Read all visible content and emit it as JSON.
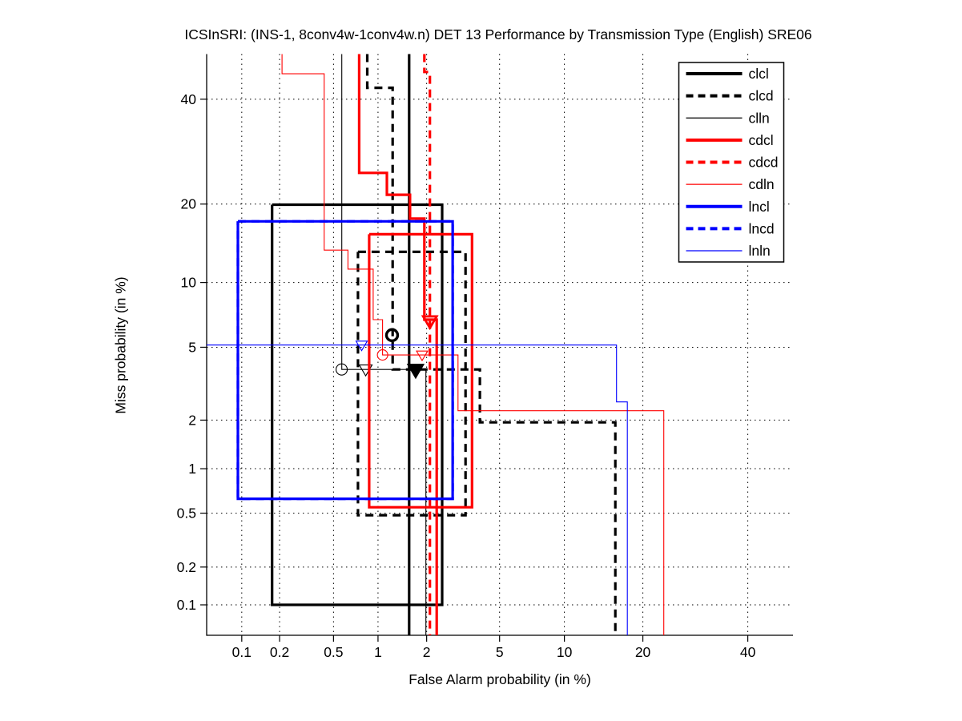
{
  "title": "ICSInSRI: (INS-1, 8conv4w-1conv4w.n) DET 13 Performance by Transmission Type (English) SRE06",
  "axes": {
    "x_label": "False Alarm probability (in %)",
    "y_label": "Miss probability (in %)",
    "x_tick_labels": [
      "0.1",
      "0.2",
      "0.5",
      "1",
      "2",
      "5",
      "10",
      "20",
      "40"
    ],
    "x_tick_values": [
      0.1,
      0.2,
      0.5,
      1,
      2,
      5,
      10,
      20,
      40
    ],
    "y_tick_labels": [
      "40",
      "20",
      "10",
      "5",
      "2",
      "1",
      "0.5",
      "0.2",
      "0.1"
    ],
    "y_tick_values": [
      40,
      20,
      10,
      5,
      2,
      1,
      0.5,
      0.2,
      0.1
    ],
    "x_range_pct": [
      0.05,
      50
    ],
    "y_range_pct": [
      0.055,
      50
    ],
    "scale": "normal-deviate (probit)",
    "grid": "dotted lines at labeled ticks"
  },
  "colors": {
    "black": "#000000",
    "red": "#ff0000",
    "blue": "#0000ff",
    "grid": "#000000",
    "background": "#ffffff",
    "legend_border": "#000000"
  },
  "chart_data": {
    "type": "line",
    "subtype": "DET curves (step functions on probit-scaled axes)",
    "title": "ICSInSRI: (INS-1, 8conv4w-1conv4w.n) DET 13 Performance by Transmission Type (English) SRE06",
    "xlabel": "False Alarm probability (in %)",
    "ylabel": "Miss probability (in %)",
    "xlim_pct": [
      0.05,
      50
    ],
    "ylim_pct": [
      0.055,
      50
    ],
    "legend_position": "top-right inside plot",
    "series": [
      {
        "name": "clcl",
        "color": "#000000",
        "style": "solid",
        "width": 3.2,
        "draw_order": 0,
        "polylines": [
          [
            [
              1.57,
              50
            ],
            [
              1.57,
              0.05
            ]
          ],
          [
            [
              0.175,
              19.9
            ],
            [
              2.46,
              19.9
            ],
            [
              2.46,
              0.1
            ],
            [
              0.175,
              0.1
            ],
            [
              0.175,
              19.9
            ]
          ]
        ],
        "markers": [
          {
            "shape": "triangle-down",
            "filled": true,
            "x": 1.72,
            "y": 3.82,
            "size": 9,
            "sw": 2.5
          }
        ]
      },
      {
        "name": "clcd",
        "color": "#000000",
        "style": "dashed",
        "width": 3.2,
        "draw_order": 1,
        "polylines": [
          [
            [
              0.85,
              50
            ],
            [
              0.85,
              42.5
            ],
            [
              1.24,
              42.5
            ],
            [
              1.24,
              3.84
            ],
            [
              3.96,
              3.84
            ],
            [
              3.96,
              1.94
            ],
            [
              15.96,
              1.94
            ],
            [
              15.96,
              0.05
            ]
          ],
          [
            [
              0.737,
              13.35
            ],
            [
              3.32,
              13.35
            ],
            [
              3.32,
              0.484
            ],
            [
              0.737,
              0.484
            ],
            [
              0.737,
              13.35
            ]
          ]
        ],
        "markers": [
          {
            "shape": "circle",
            "filled": false,
            "x": 1.23,
            "y": 5.74,
            "size": 7,
            "sw": 3.4
          }
        ]
      },
      {
        "name": "clln",
        "color": "#000000",
        "style": "solid",
        "width": 1.1,
        "draw_order": 2,
        "polylines": [
          [
            [
              0.571,
              50
            ],
            [
              0.571,
              3.84
            ],
            [
              1.98,
              3.84
            ],
            [
              1.98,
              0.05
            ]
          ]
        ],
        "markers": [
          {
            "shape": "circle",
            "filled": false,
            "x": 0.57,
            "y": 3.84,
            "size": 7,
            "sw": 1.1
          },
          {
            "shape": "triangle-down",
            "filled": false,
            "x": 0.83,
            "y": 3.84,
            "size": 8,
            "sw": 1.1
          }
        ]
      },
      {
        "name": "cdcl",
        "color": "#ff0000",
        "style": "solid",
        "width": 3.2,
        "draw_order": 3,
        "polylines": [
          [
            [
              0.751,
              50
            ],
            [
              0.751,
              25.25
            ],
            [
              1.14,
              25.25
            ],
            [
              1.14,
              21.5
            ],
            [
              1.59,
              21.5
            ],
            [
              1.59,
              17.8
            ],
            [
              1.94,
              17.8
            ],
            [
              1.94,
              6.81
            ],
            [
              2.29,
              6.81
            ],
            [
              2.29,
              0.05
            ]
          ],
          [
            [
              0.875,
              15.6
            ],
            [
              3.6,
              15.6
            ],
            [
              3.6,
              0.55
            ],
            [
              0.875,
              0.55
            ],
            [
              0.875,
              15.6
            ]
          ]
        ],
        "markers": []
      },
      {
        "name": "cdcd",
        "color": "#ff0000",
        "style": "dashed",
        "width": 3.2,
        "draw_order": 4,
        "polylines": [
          [
            [
              1.94,
              50
            ],
            [
              1.94,
              46
            ],
            [
              2.09,
              46
            ],
            [
              2.09,
              0.05
            ]
          ]
        ],
        "markers": [
          {
            "shape": "triangle-down",
            "filled": false,
            "x": 2.09,
            "y": 6.7,
            "size": 8.5,
            "sw": 2.8
          }
        ]
      },
      {
        "name": "cdln",
        "color": "#ff0000",
        "style": "solid",
        "width": 1.1,
        "draw_order": 5,
        "polylines": [
          [
            [
              0.209,
              50
            ],
            [
              0.209,
              45.6
            ],
            [
              0.429,
              45.6
            ],
            [
              0.429,
              13.57
            ],
            [
              0.63,
              13.57
            ],
            [
              0.63,
              11.38
            ],
            [
              0.93,
              11.38
            ],
            [
              0.93,
              6.81
            ],
            [
              1.07,
              6.81
            ],
            [
              1.07,
              4.57
            ],
            [
              3.02,
              4.57
            ],
            [
              3.02,
              2.27
            ],
            [
              23.45,
              2.27
            ],
            [
              23.45,
              0.05
            ]
          ]
        ],
        "markers": [
          {
            "shape": "circle",
            "filled": false,
            "x": 1.07,
            "y": 4.57,
            "size": 6.5,
            "sw": 1.1
          },
          {
            "shape": "triangle-down",
            "filled": false,
            "x": 1.88,
            "y": 4.57,
            "size": 7,
            "sw": 1.1
          }
        ]
      },
      {
        "name": "lncl",
        "color": "#0000ff",
        "style": "solid",
        "width": 3.2,
        "draw_order": 7,
        "polylines": [
          [
            [
              0.093,
              17.4
            ],
            [
              2.82,
              17.4
            ],
            [
              2.82,
              0.63
            ],
            [
              0.093,
              0.63
            ],
            [
              0.093,
              17.4
            ]
          ]
        ],
        "markers": []
      },
      {
        "name": "lncd",
        "color": "#0000ff",
        "style": "dashed",
        "width": 3.2,
        "draw_order": 6,
        "note": "coincides with lncl rectangle (hidden underneath)",
        "polylines": [
          [
            [
              0.093,
              17.4
            ],
            [
              2.82,
              17.4
            ],
            [
              2.82,
              0.63
            ],
            [
              0.093,
              0.63
            ],
            [
              0.093,
              17.4
            ]
          ]
        ],
        "markers": []
      },
      {
        "name": "lnln",
        "color": "#0000ff",
        "style": "solid",
        "width": 1.1,
        "draw_order": 8,
        "polylines": [
          [
            [
              0.0506,
              5.13
            ],
            [
              16.13,
              5.13
            ],
            [
              16.13,
              2.55
            ],
            [
              17.65,
              2.55
            ],
            [
              17.65,
              0.05
            ]
          ]
        ],
        "markers": [
          {
            "shape": "triangle-down",
            "filled": false,
            "x": 0.78,
            "y": 5.13,
            "size": 7,
            "sw": 1.1
          }
        ]
      }
    ]
  },
  "legend": {
    "entries": [
      "clcl",
      "clcd",
      "clln",
      "cdcl",
      "cdcd",
      "cdln",
      "lncl",
      "lncd",
      "lnln"
    ]
  }
}
